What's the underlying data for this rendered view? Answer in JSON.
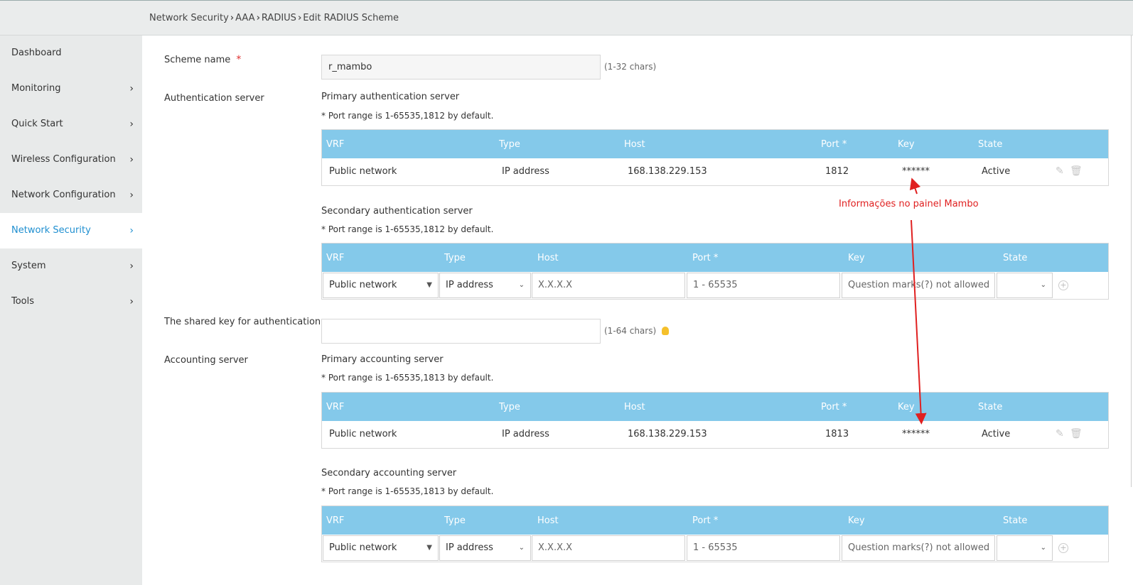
{
  "breadcrumb": [
    "Network Security",
    "AAA",
    "RADIUS",
    "Edit RADIUS Scheme"
  ],
  "sidebar": {
    "items": [
      {
        "label": "Dashboard",
        "chevron": false
      },
      {
        "label": "Monitoring",
        "chevron": true
      },
      {
        "label": "Quick Start",
        "chevron": true
      },
      {
        "label": "Wireless Configuration",
        "chevron": true
      },
      {
        "label": "Network Configuration",
        "chevron": true
      },
      {
        "label": "Network Security",
        "chevron": true,
        "active": true
      },
      {
        "label": "System",
        "chevron": true
      },
      {
        "label": "Tools",
        "chevron": true
      }
    ]
  },
  "scheme": {
    "label": "Scheme name",
    "required_mark": "*",
    "value": "r_mambo",
    "hint": "(1-32 chars)"
  },
  "auth": {
    "label": "Authentication server",
    "primary": {
      "title": "Primary authentication server",
      "note": "* Port range is 1-65535,1812 by default.",
      "headers": {
        "vrf": "VRF",
        "type": "Type",
        "host": "Host",
        "port": "Port *",
        "key": "Key",
        "state": "State"
      },
      "row": {
        "vrf": "Public network",
        "type": "IP address",
        "host": "168.138.229.153",
        "port": "1812",
        "key": "******",
        "state": "Active"
      }
    },
    "secondary": {
      "title": "Secondary authentication server",
      "note": "* Port range is 1-65535,1812 by default.",
      "headers": {
        "vrf": "VRF",
        "type": "Type",
        "host": "Host",
        "port": "Port *",
        "key": "Key",
        "state": "State"
      },
      "row": {
        "vrf": "Public network",
        "type": "IP address",
        "host_placeholder": "X.X.X.X",
        "port_placeholder": "1 - 65535",
        "key_placeholder": "Question marks(?) not allowed",
        "state": ""
      }
    }
  },
  "shared_key": {
    "label": "The shared key for authentication",
    "value": "",
    "hint": "(1-64 chars)"
  },
  "acct": {
    "label": "Accounting server",
    "primary": {
      "title": "Primary accounting server",
      "note": "* Port range is 1-65535,1813 by default.",
      "headers": {
        "vrf": "VRF",
        "type": "Type",
        "host": "Host",
        "port": "Port *",
        "key": "Key",
        "state": "State"
      },
      "row": {
        "vrf": "Public network",
        "type": "IP address",
        "host": "168.138.229.153",
        "port": "1813",
        "key": "******",
        "state": "Active"
      }
    },
    "secondary": {
      "title": "Secondary accounting server",
      "note": "* Port range is 1-65535,1813 by default.",
      "headers": {
        "vrf": "VRF",
        "type": "Type",
        "host": "Host",
        "port": "Port *",
        "key": "Key",
        "state": "State"
      },
      "row": {
        "vrf": "Public network",
        "type": "IP address",
        "host_placeholder": "X.X.X.X",
        "port_placeholder": "1 - 65535",
        "key_placeholder": "Question marks(?) not allowed",
        "state": ""
      }
    }
  },
  "annotation": {
    "text": "Informações no painel Mambo",
    "color": "#e02020"
  },
  "colors": {
    "accent": "#1f8fd0",
    "table_header": "#84c9ea",
    "required": "#e03030"
  }
}
